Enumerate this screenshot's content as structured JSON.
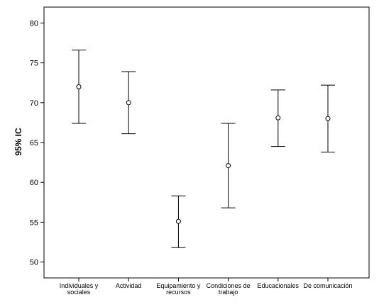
{
  "chart_data": {
    "type": "errorbar",
    "title": "",
    "xlabel": "",
    "ylabel": "95% IC",
    "ylim": [
      48,
      82
    ],
    "yticks": [
      50,
      55,
      60,
      65,
      70,
      75,
      80
    ],
    "grid": false,
    "categories": [
      {
        "lines": [
          "Individuales y",
          "sociales"
        ]
      },
      {
        "lines": [
          "Actividad"
        ]
      },
      {
        "lines": [
          "Equipamiento y",
          "recursos"
        ]
      },
      {
        "lines": [
          "Condiciones de",
          "trabajo"
        ]
      },
      {
        "lines": [
          "Educacionales"
        ]
      },
      {
        "lines": [
          "De comunicación"
        ]
      }
    ],
    "series": [
      {
        "mean": [
          72.0,
          70.0,
          55.1,
          62.1,
          68.1,
          68.0
        ],
        "lower": [
          67.4,
          66.1,
          51.8,
          56.8,
          64.5,
          63.8
        ],
        "upper": [
          76.6,
          73.9,
          58.3,
          67.4,
          71.6,
          72.2
        ]
      }
    ]
  }
}
